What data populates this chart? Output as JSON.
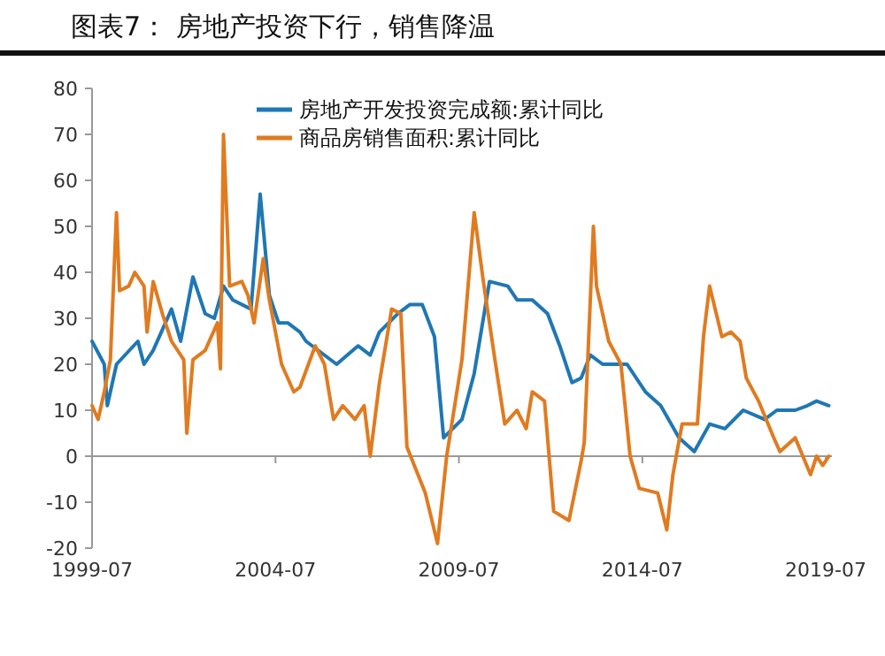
{
  "chart_data": {
    "type": "line",
    "title": "图表7：  房地产投资下行，销售降温",
    "ylim": [
      -20,
      80
    ],
    "yticks": [
      -20,
      -10,
      0,
      10,
      20,
      30,
      40,
      50,
      60,
      70,
      80
    ],
    "xlim": [
      "1999-07",
      "2019-09"
    ],
    "xticks": [
      "1999-07",
      "2004-07",
      "2009-07",
      "2014-07",
      "2019-07"
    ],
    "legend": "top right",
    "series": [
      {
        "name": "房地产开发投资完成额:累计同比",
        "color": "#1f77b4",
        "x": [
          "1999-07",
          "1999-11",
          "1999-12",
          "2000-03",
          "2000-10",
          "2000-12",
          "2001-03",
          "2001-09",
          "2001-12",
          "2002-04",
          "2002-08",
          "2002-11",
          "2003-02",
          "2003-05",
          "2003-11",
          "2004-02",
          "2004-05",
          "2004-08",
          "2004-11",
          "2005-03",
          "2005-05",
          "2006-03",
          "2006-10",
          "2007-02",
          "2007-05",
          "2007-11",
          "2008-03",
          "2008-07",
          "2008-11",
          "2009-02",
          "2009-08",
          "2009-12",
          "2010-05",
          "2010-11",
          "2011-02",
          "2011-07",
          "2011-12",
          "2012-04",
          "2012-08",
          "2012-11",
          "2013-02",
          "2013-06",
          "2014-02",
          "2014-08",
          "2015-01",
          "2015-07",
          "2015-12",
          "2016-05",
          "2016-10",
          "2017-04",
          "2017-11",
          "2018-03",
          "2018-09",
          "2019-01",
          "2019-04",
          "2019-08"
        ],
        "values": [
          25,
          20,
          11,
          20,
          25,
          20,
          23,
          32,
          25,
          39,
          31,
          30,
          37,
          34,
          32,
          57,
          35,
          29,
          29,
          27,
          25,
          20,
          24,
          22,
          27,
          31,
          33,
          33,
          26,
          4,
          8,
          18,
          38,
          37,
          34,
          34,
          31,
          24,
          16,
          17,
          22,
          20,
          20,
          14,
          11,
          4,
          1,
          7,
          6,
          10,
          8,
          10,
          10,
          11,
          12,
          11
        ]
      },
      {
        "name": "商品房销售面积:累计同比",
        "color": "#e07b20",
        "x": [
          "1999-07",
          "1999-09",
          "1999-11",
          "2000-01",
          "2000-03",
          "2000-04",
          "2000-07",
          "2000-09",
          "2000-12",
          "2001-01",
          "2001-03",
          "2001-06",
          "2001-09",
          "2002-01",
          "2002-02",
          "2002-04",
          "2002-08",
          "2002-12",
          "2003-01",
          "2003-02",
          "2003-04",
          "2003-08",
          "2003-10",
          "2003-12",
          "2004-03",
          "2004-05",
          "2004-09",
          "2005-01",
          "2005-03",
          "2005-08",
          "2005-11",
          "2006-02",
          "2006-05",
          "2006-09",
          "2006-12",
          "2007-02",
          "2007-05",
          "2007-09",
          "2007-12",
          "2008-02",
          "2008-08",
          "2008-12",
          "2009-03",
          "2009-08",
          "2009-12",
          "2010-03",
          "2010-07",
          "2010-10",
          "2011-02",
          "2011-05",
          "2011-07",
          "2011-11",
          "2012-02",
          "2012-07",
          "2012-11",
          "2012-12",
          "2013-03",
          "2013-04",
          "2013-08",
          "2013-12",
          "2014-03",
          "2014-06",
          "2014-12",
          "2015-03",
          "2015-05",
          "2015-08",
          "2016-01",
          "2016-03",
          "2016-05",
          "2016-09",
          "2016-12",
          "2017-03",
          "2017-05",
          "2017-09",
          "2018-02",
          "2018-04",
          "2018-09",
          "2019-02",
          "2019-04",
          "2019-06",
          "2019-08"
        ],
        "values": [
          11,
          8,
          14,
          21,
          53,
          36,
          37,
          40,
          37,
          27,
          38,
          31,
          25,
          21,
          5,
          21,
          23,
          29,
          19,
          70,
          37,
          38,
          35,
          29,
          43,
          34,
          20,
          14,
          15,
          24,
          20,
          8,
          11,
          8,
          11,
          0,
          16,
          32,
          31,
          2,
          -8,
          -19,
          0,
          21,
          53,
          38,
          20,
          7,
          10,
          6,
          14,
          12,
          -12,
          -14,
          -1,
          3,
          50,
          37,
          25,
          20,
          0,
          -7,
          -8,
          -16,
          -4,
          7,
          7,
          26,
          37,
          26,
          27,
          25,
          17,
          12,
          4,
          1,
          4,
          -4,
          0,
          -2,
          0
        ]
      }
    ]
  }
}
